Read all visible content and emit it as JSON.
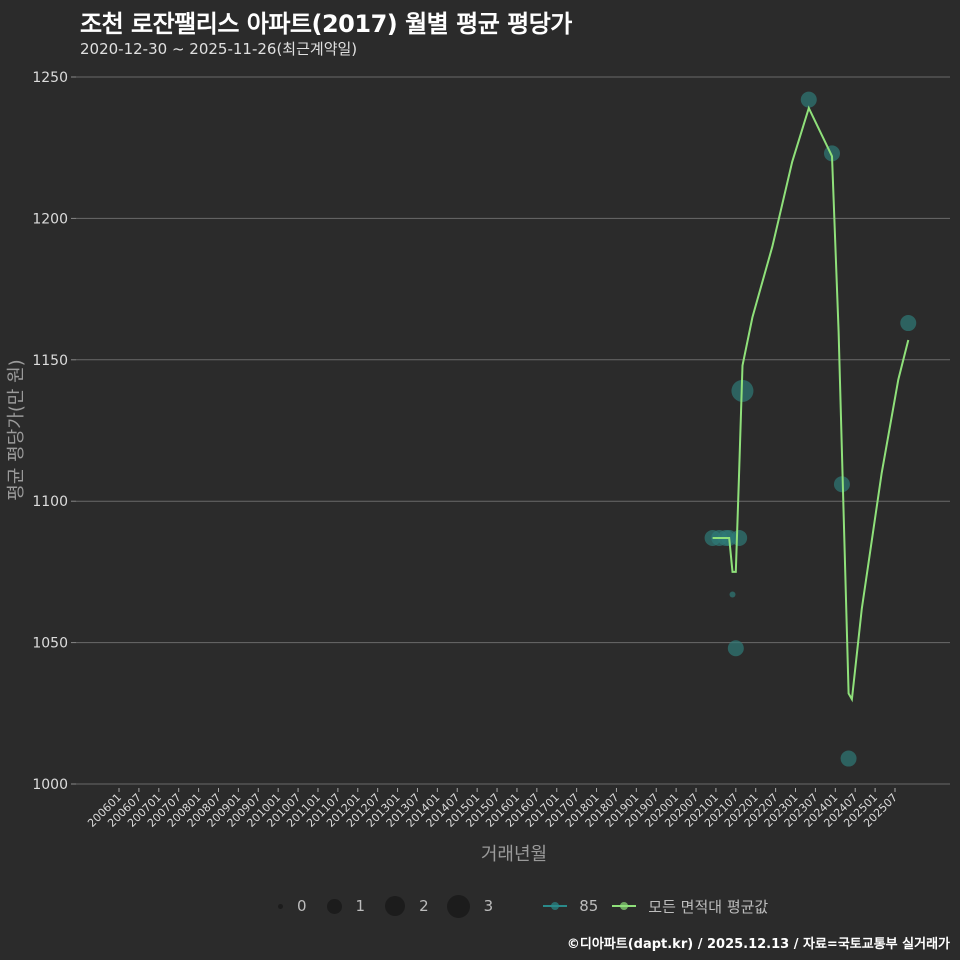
{
  "header": {
    "title": "조천 로잔팰리스 아파트(2017) 월별 평균 평당가",
    "subtitle": "2020-12-30 ~ 2025-11-26(최근계약일)"
  },
  "footer": {
    "credit": "©디아파트(dapt.kr) / 2025.12.13 / 자료=국토교통부 실거래가"
  },
  "legend": {
    "size": [
      {
        "label": "0",
        "r": 2.5
      },
      {
        "label": "1",
        "r": 7
      },
      {
        "label": "2",
        "r": 10
      },
      {
        "label": "3",
        "r": 12
      }
    ],
    "series": [
      {
        "label": "85",
        "color": "#2a8a8a"
      },
      {
        "label": "모든 면적대 평균값",
        "color": "#8fe07a"
      }
    ]
  },
  "colors": {
    "background": "#2b2b2b",
    "grid": "#6a6a6a",
    "point": "#2f7a78",
    "line": "#8fe07a"
  },
  "chart_data": {
    "type": "line",
    "title": "조천 로잔팰리스 아파트(2017) 월별 평균 평당가",
    "subtitle": "2020-12-30 ~ 2025-11-26(최근계약일)",
    "xlabel": "거래년월",
    "ylabel": "평균 평당가(만 원)",
    "ylim": [
      1000,
      1250
    ],
    "yticks": [
      1000,
      1050,
      1100,
      1150,
      1200,
      1250
    ],
    "xticks": [
      "200601",
      "200607",
      "200701",
      "200707",
      "200801",
      "200807",
      "200901",
      "200907",
      "201001",
      "201007",
      "201101",
      "201107",
      "201201",
      "201207",
      "201301",
      "201307",
      "201401",
      "201407",
      "201501",
      "201507",
      "201601",
      "201607",
      "201701",
      "201707",
      "201801",
      "201807",
      "201901",
      "201907",
      "202001",
      "202007",
      "202101",
      "202107",
      "202201",
      "202207",
      "202301",
      "202307",
      "202401",
      "202407",
      "202501",
      "202507"
    ],
    "grid": true,
    "legend_position": "bottom",
    "series": [
      {
        "name": "85",
        "kind": "scatter",
        "points": [
          {
            "x": "202012",
            "y": 1087,
            "count": 1
          },
          {
            "x": "202102",
            "y": 1087,
            "count": 1
          },
          {
            "x": "202104",
            "y": 1087,
            "count": 1
          },
          {
            "x": "202105",
            "y": 1087,
            "count": 1
          },
          {
            "x": "202106",
            "y": 1067,
            "count": 0
          },
          {
            "x": "202107",
            "y": 1048,
            "count": 1
          },
          {
            "x": "202108",
            "y": 1087,
            "count": 1
          },
          {
            "x": "202109",
            "y": 1139,
            "count": 2
          },
          {
            "x": "202305",
            "y": 1242,
            "count": 1
          },
          {
            "x": "202312",
            "y": 1223,
            "count": 1
          },
          {
            "x": "202403",
            "y": 1106,
            "count": 1
          },
          {
            "x": "202405",
            "y": 1009,
            "count": 1
          },
          {
            "x": "202511",
            "y": 1163,
            "count": 1
          }
        ]
      },
      {
        "name": "모든 면적대 평균값",
        "kind": "line",
        "points": [
          {
            "x": "202012",
            "y": 1087
          },
          {
            "x": "202105",
            "y": 1087
          },
          {
            "x": "202106",
            "y": 1075
          },
          {
            "x": "202107",
            "y": 1075
          },
          {
            "x": "202108",
            "y": 1110
          },
          {
            "x": "202109",
            "y": 1148
          },
          {
            "x": "202112",
            "y": 1165
          },
          {
            "x": "202206",
            "y": 1190
          },
          {
            "x": "202212",
            "y": 1220
          },
          {
            "x": "202305",
            "y": 1239
          },
          {
            "x": "202312",
            "y": 1222
          },
          {
            "x": "202402",
            "y": 1160
          },
          {
            "x": "202405",
            "y": 1032
          },
          {
            "x": "202406",
            "y": 1030
          },
          {
            "x": "202409",
            "y": 1062
          },
          {
            "x": "202503",
            "y": 1110
          },
          {
            "x": "202508",
            "y": 1143
          },
          {
            "x": "202511",
            "y": 1157
          }
        ]
      }
    ]
  },
  "plot": {
    "y_tick_labels": [
      "1250",
      "1200",
      "1150",
      "1100",
      "1050",
      "1000"
    ]
  }
}
